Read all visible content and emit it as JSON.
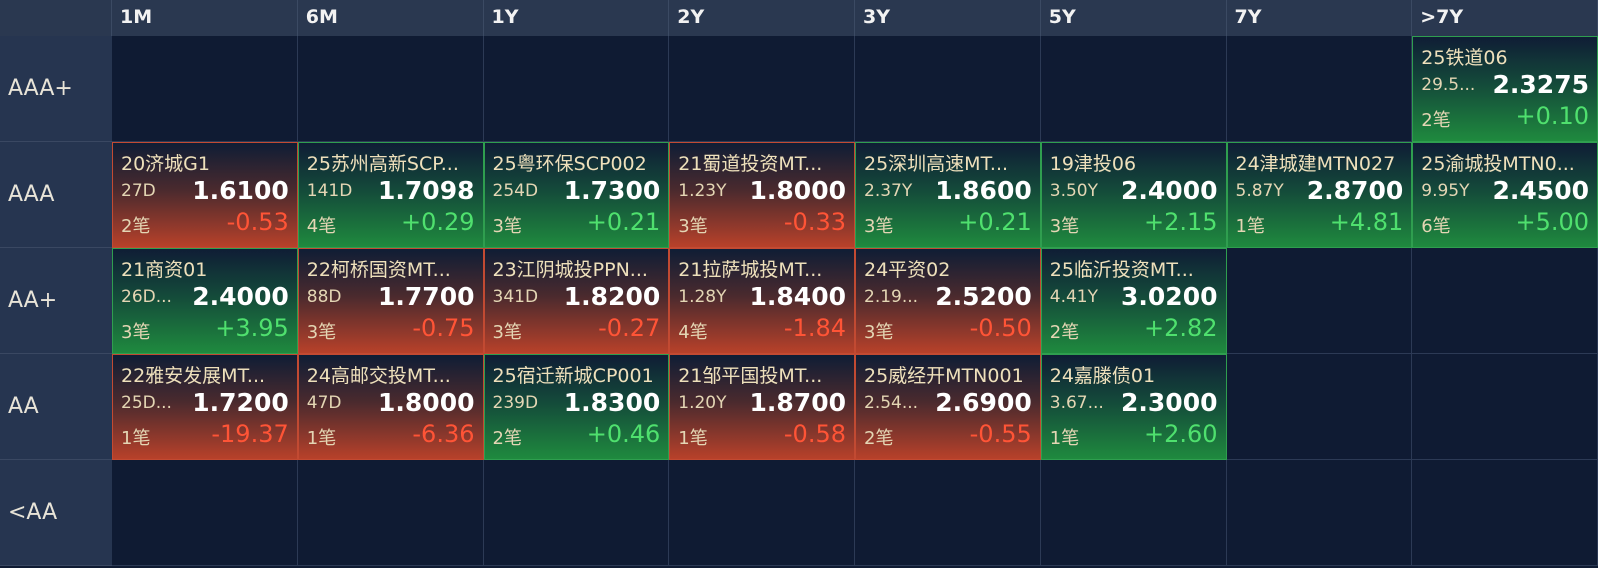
{
  "columns": [
    "1M",
    "6M",
    "1Y",
    "2Y",
    "3Y",
    "5Y",
    "7Y",
    ">7Y"
  ],
  "rows": [
    {
      "rating": "AAA+",
      "cells": [
        null,
        null,
        null,
        null,
        null,
        null,
        null,
        {
          "name": "25铁道06",
          "term": "29.5...",
          "price": "2.3275",
          "count": "2笔",
          "change": "+0.10"
        }
      ]
    },
    {
      "rating": "AAA",
      "cells": [
        {
          "name": "20济城G1",
          "term": "27D",
          "price": "1.6100",
          "count": "2笔",
          "change": "-0.53"
        },
        {
          "name": "25苏州高新SCP...",
          "term": "141D",
          "price": "1.7098",
          "count": "4笔",
          "change": "+0.29"
        },
        {
          "name": "25粤环保SCP002",
          "term": "254D",
          "price": "1.7300",
          "count": "3笔",
          "change": "+0.21"
        },
        {
          "name": "21蜀道投资MT...",
          "term": "1.23Y",
          "price": "1.8000",
          "count": "3笔",
          "change": "-0.33"
        },
        {
          "name": "25深圳高速MT...",
          "term": "2.37Y",
          "price": "1.8600",
          "count": "3笔",
          "change": "+0.21"
        },
        {
          "name": "19津投06",
          "term": "3.50Y",
          "price": "2.4000",
          "count": "3笔",
          "change": "+2.15"
        },
        {
          "name": "24津城建MTN027",
          "term": "5.87Y",
          "price": "2.8700",
          "count": "1笔",
          "change": "+4.81"
        },
        {
          "name": "25渝城投MTN0...",
          "term": "9.95Y",
          "price": "2.4500",
          "count": "6笔",
          "change": "+5.00"
        }
      ]
    },
    {
      "rating": "AA+",
      "cells": [
        {
          "name": "21商资01",
          "term": "26D...",
          "price": "2.4000",
          "count": "3笔",
          "change": "+3.95"
        },
        {
          "name": "22柯桥国资MT...",
          "term": "88D",
          "price": "1.7700",
          "count": "3笔",
          "change": "-0.75"
        },
        {
          "name": "23江阴城投PPN...",
          "term": "341D",
          "price": "1.8200",
          "count": "3笔",
          "change": "-0.27"
        },
        {
          "name": "21拉萨城投MT...",
          "term": "1.28Y",
          "price": "1.8400",
          "count": "4笔",
          "change": "-1.84"
        },
        {
          "name": "24平资02",
          "term": "2.19...",
          "price": "2.5200",
          "count": "3笔",
          "change": "-0.50"
        },
        {
          "name": "25临沂投资MT...",
          "term": "4.41Y",
          "price": "3.0200",
          "count": "2笔",
          "change": "+2.82"
        },
        null,
        null
      ]
    },
    {
      "rating": "AA",
      "cells": [
        {
          "name": "22雅安发展MT...",
          "term": "25D...",
          "price": "1.7200",
          "count": "1笔",
          "change": "-19.37"
        },
        {
          "name": "24高邮交投MT...",
          "term": "47D",
          "price": "1.8000",
          "count": "1笔",
          "change": "-6.36"
        },
        {
          "name": "25宿迁新城CP001",
          "term": "239D",
          "price": "1.8300",
          "count": "2笔",
          "change": "+0.46"
        },
        {
          "name": "21邹平国投MT...",
          "term": "1.20Y",
          "price": "1.8700",
          "count": "1笔",
          "change": "-0.58"
        },
        {
          "name": "25威经开MTN001",
          "term": "2.54...",
          "price": "2.6900",
          "count": "2笔",
          "change": "-0.55"
        },
        {
          "name": "24嘉滕债01",
          "term": "3.67...",
          "price": "2.3000",
          "count": "1笔",
          "change": "+2.60"
        },
        null,
        null
      ]
    },
    {
      "rating": "<AA",
      "cells": [
        null,
        null,
        null,
        null,
        null,
        null,
        null,
        null
      ]
    }
  ]
}
